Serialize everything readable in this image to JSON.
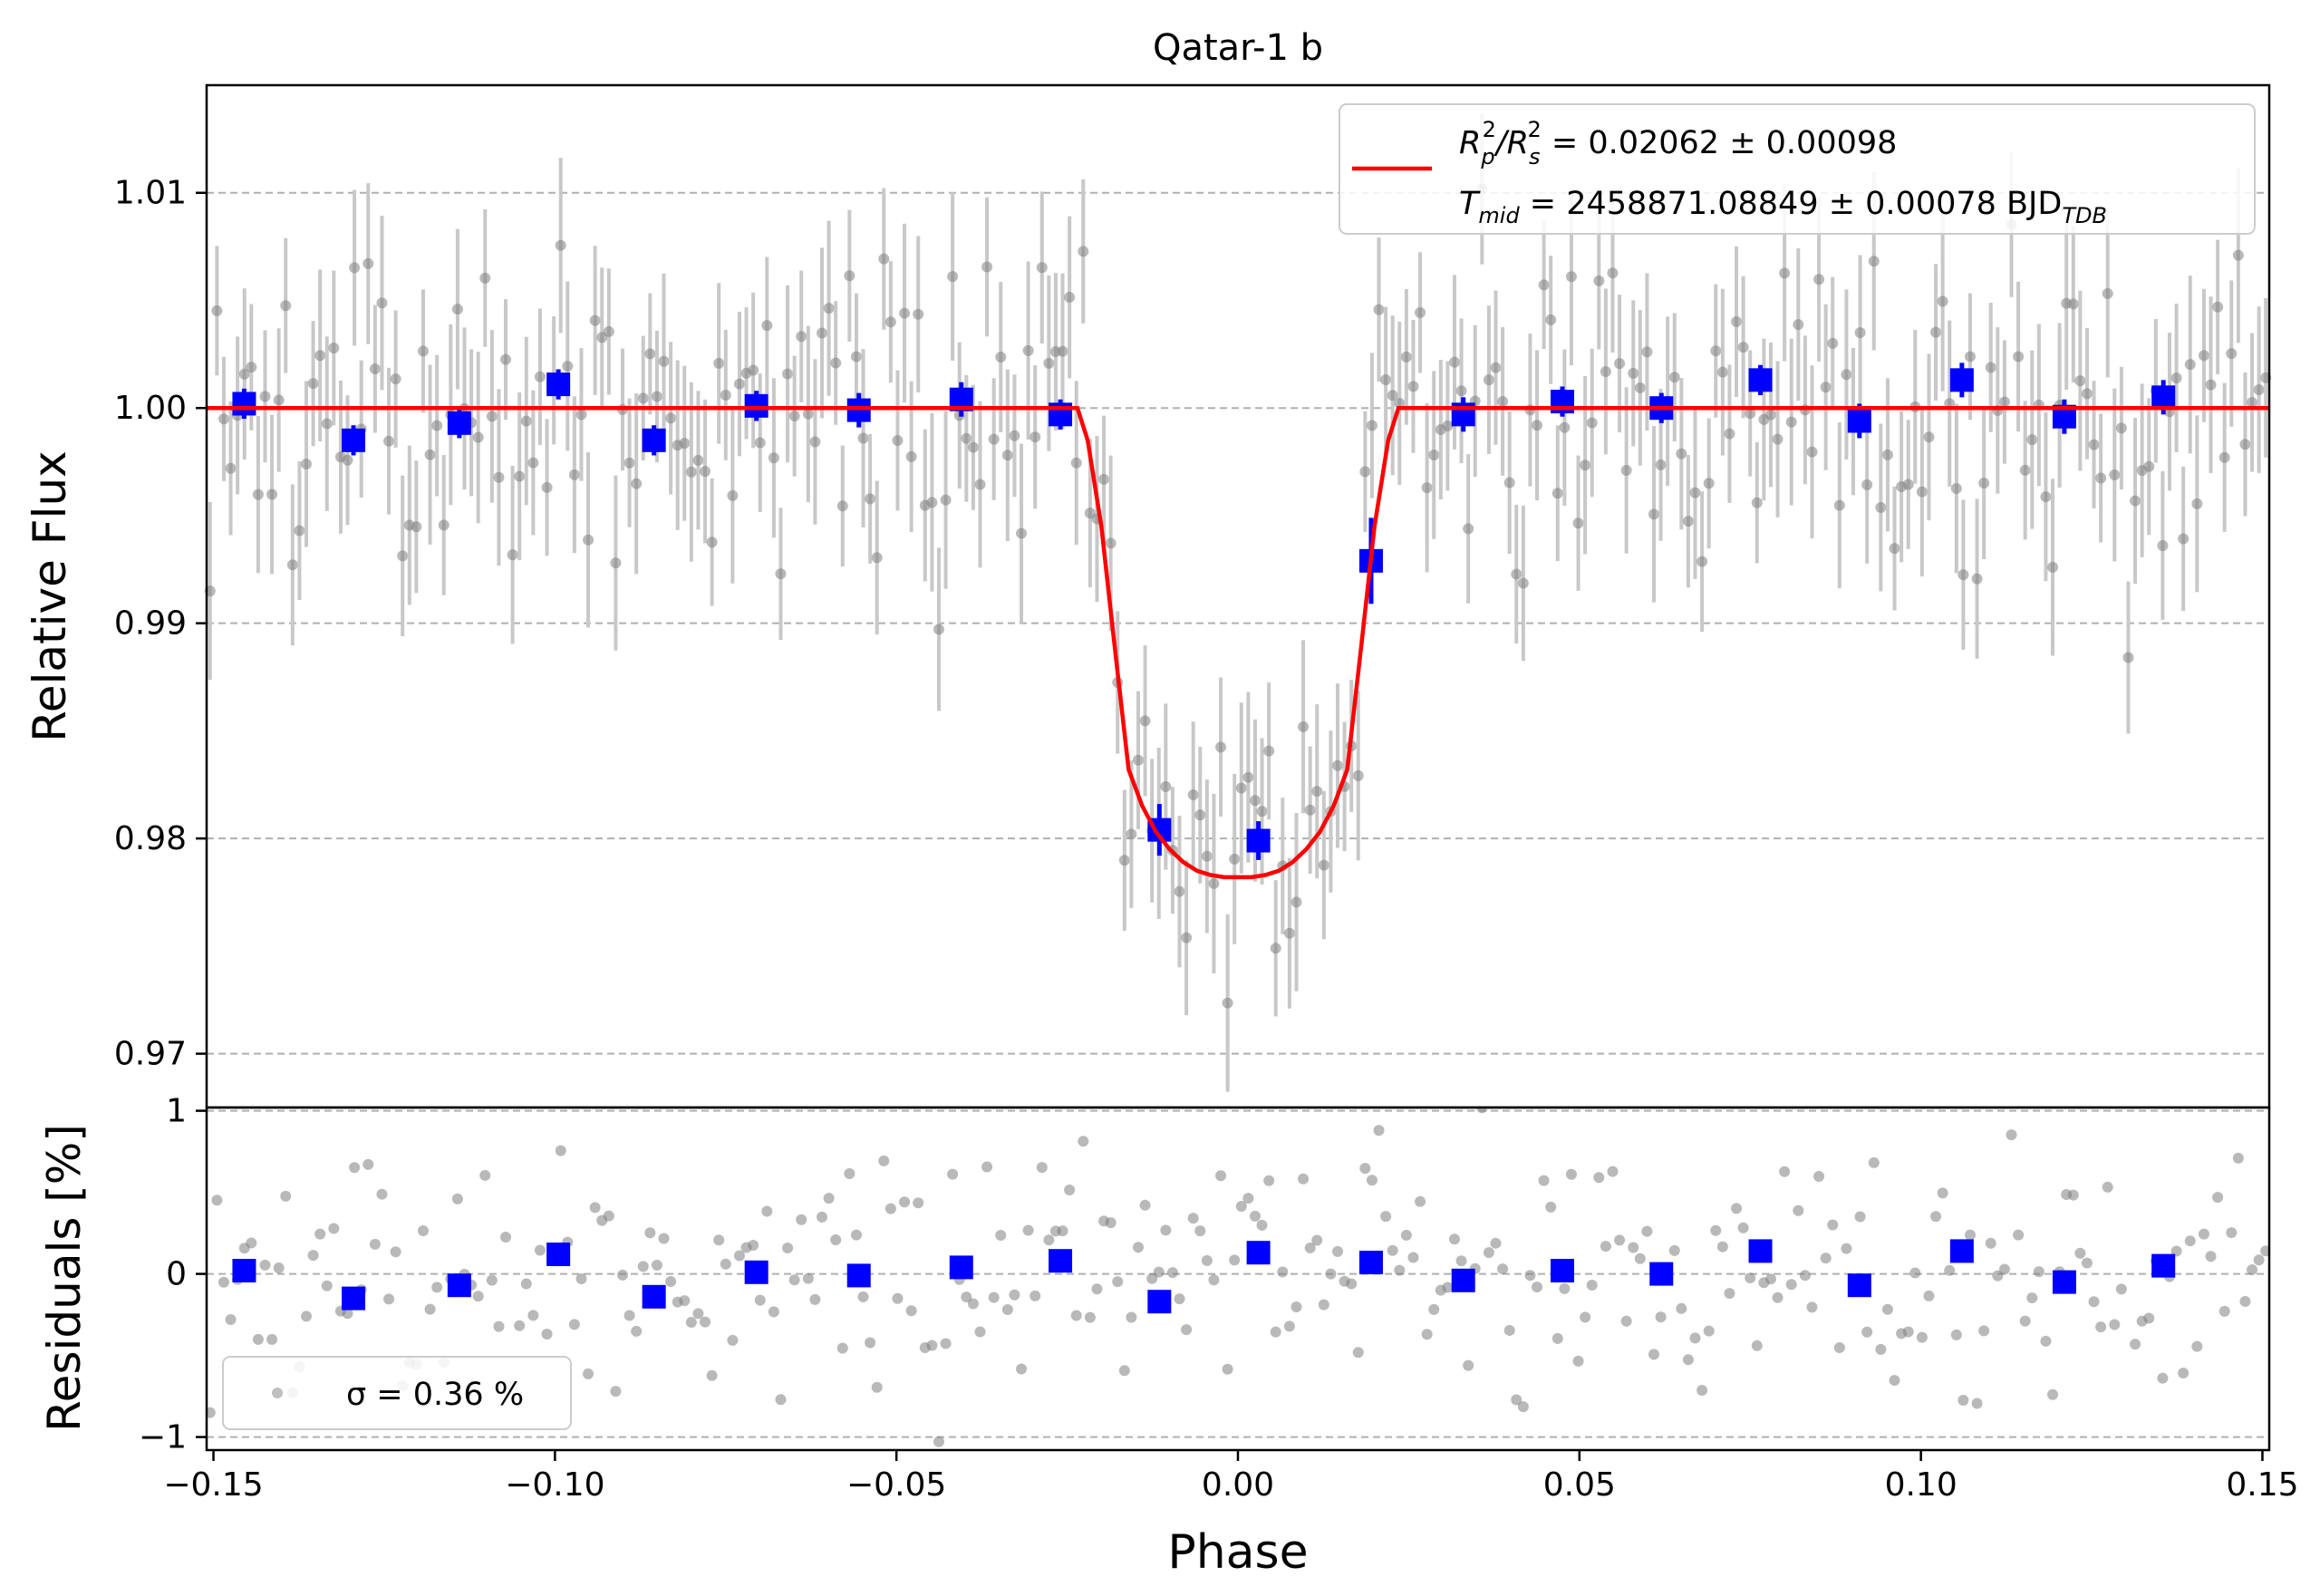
{
  "colors": {
    "model_line": "#ff0000",
    "binned": "#0000ff",
    "raw_points": "#808080",
    "raw_errorbars": "#c8c8c8",
    "grid": "#b0b0b0"
  },
  "chart_data": [
    {
      "type": "scatter",
      "panel": "light-curve",
      "title": "Qatar-1 b",
      "xlabel": "",
      "ylabel": "Relative Flux",
      "xlim": [
        -0.151,
        0.151
      ],
      "ylim": [
        0.9675,
        1.015
      ],
      "yticks": [
        "0.97",
        "0.98",
        "0.99",
        "1.00",
        "1.01"
      ],
      "ytick_values": [
        0.97,
        0.98,
        0.99,
        1.0,
        1.01
      ],
      "grid": "horizontal dashed",
      "legend_position": "top-right",
      "legend": {
        "label_line1": "R_p^2/R_s^2 = 0.02062 ± 0.00098",
        "label_line1_parts": [
          "R",
          "p",
          "2",
          "/R",
          "s",
          "2",
          " = 0.02062 ± 0.00098"
        ],
        "label_line2": "T_mid = 2458871.08849 ± 0.00078 BJD_TDB",
        "label_line2_parts": [
          "T",
          "mid",
          " = 2458871.08849 ± 0.00078 BJD",
          "TDB"
        ]
      },
      "model": {
        "name": "R_p^2/R_s^2 = 0.02062 ± 0.00098",
        "description": "transit model: flat at 1.000, ingress from phase -0.0235, minimum 0.9782 at phase 0.0, egress ends at phase 0.0235",
        "x": [
          -0.151,
          -0.0235,
          -0.022,
          -0.02,
          -0.018,
          -0.016,
          -0.014,
          -0.012,
          -0.01,
          -0.008,
          -0.006,
          -0.004,
          -0.002,
          0.0,
          0.002,
          0.004,
          0.006,
          0.008,
          0.01,
          0.012,
          0.014,
          0.016,
          0.018,
          0.02,
          0.022,
          0.0235,
          0.151
        ],
        "y": [
          1.0,
          1.0,
          0.9985,
          0.9945,
          0.9888,
          0.9832,
          0.9815,
          0.9803,
          0.9795,
          0.9789,
          0.9785,
          0.9783,
          0.9782,
          0.9782,
          0.9782,
          0.9783,
          0.9785,
          0.9789,
          0.9795,
          0.9803,
          0.9815,
          0.9832,
          0.9888,
          0.9945,
          0.9985,
          1.0,
          1.0
        ]
      },
      "binned": {
        "x": [
          -0.1455,
          -0.1295,
          -0.114,
          -0.0995,
          -0.0855,
          -0.0705,
          -0.0555,
          -0.0405,
          -0.026,
          -0.0115,
          0.003,
          0.0195,
          0.033,
          0.0475,
          0.062,
          0.0765,
          0.091,
          0.106,
          0.121,
          0.1355
        ],
        "y": [
          1.0002,
          0.9985,
          0.9993,
          1.0011,
          0.9985,
          1.0001,
          0.9999,
          1.0004,
          0.9997,
          0.9804,
          0.9799,
          0.9929,
          0.9997,
          1.0003,
          1.0,
          1.0013,
          0.9994,
          1.0013,
          0.9996,
          1.0005
        ],
        "yerr": [
          0.0007,
          0.0007,
          0.0007,
          0.0007,
          0.0007,
          0.0007,
          0.0008,
          0.0008,
          0.0007,
          0.0012,
          0.0009,
          0.002,
          0.0008,
          0.0007,
          0.0007,
          0.0007,
          0.0008,
          0.0008,
          0.0008,
          0.0008
        ]
      }
    },
    {
      "type": "scatter",
      "panel": "residuals",
      "xlabel": "Phase",
      "ylabel": "Residuals [%]",
      "xlim": [
        -0.151,
        0.151
      ],
      "ylim": [
        -1.08,
        1.02
      ],
      "xticks": [
        "−0.15",
        "−0.10",
        "−0.05",
        "0.00",
        "0.05",
        "0.10",
        "0.15"
      ],
      "xtick_values": [
        -0.15,
        -0.1,
        -0.05,
        0.0,
        0.05,
        0.1,
        0.15
      ],
      "yticks": [
        "−1",
        "0",
        "1"
      ],
      "ytick_values": [
        -1,
        0,
        1
      ],
      "grid": "horizontal dashed",
      "legend_position": "bottom-left",
      "legend": {
        "label": "σ = 0.36 %"
      },
      "binned": {
        "x": [
          -0.1455,
          -0.1295,
          -0.114,
          -0.0995,
          -0.0855,
          -0.0705,
          -0.0555,
          -0.0405,
          -0.026,
          -0.0115,
          0.003,
          0.0195,
          0.033,
          0.0475,
          0.062,
          0.0765,
          0.091,
          0.106,
          0.121,
          0.1355
        ],
        "y": [
          0.02,
          -0.15,
          -0.07,
          0.12,
          -0.14,
          0.01,
          -0.01,
          0.04,
          0.08,
          -0.17,
          0.13,
          0.07,
          -0.04,
          0.02,
          0.0,
          0.14,
          -0.07,
          0.14,
          -0.05,
          0.05
        ]
      },
      "raw_point_count": 300,
      "raw_point_scatter_percent": 0.36
    }
  ]
}
